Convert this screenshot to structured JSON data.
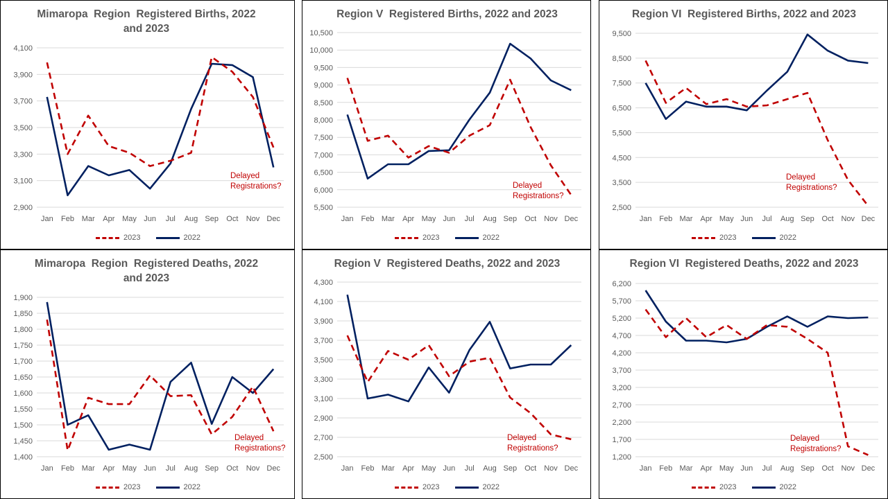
{
  "colors": {
    "series_2023": "#c00000",
    "series_2022": "#002060",
    "annotation": "#c00000",
    "grid": "#d9d9d9",
    "axis_text": "#595959",
    "title_text": "#595959"
  },
  "chart_data": [
    {
      "type": "line",
      "title": "Mimaropa  Region  Registered Births, 2022\nand 2023",
      "categories": [
        "Jan",
        "Feb",
        "Mar",
        "Apr",
        "May",
        "Jun",
        "Jul",
        "Aug",
        "Sep",
        "Oct",
        "Nov",
        "Dec"
      ],
      "y_ticks": [
        "2,900",
        "3,100",
        "3,300",
        "3,500",
        "3,700",
        "3,900",
        "4,100"
      ],
      "ylim": [
        2900,
        4100
      ],
      "series": [
        {
          "name": "2023",
          "style": "dashed",
          "values": [
            3990,
            3300,
            3590,
            3360,
            3310,
            3210,
            3250,
            3310,
            4030,
            3920,
            3730,
            3350
          ]
        },
        {
          "name": "2022",
          "style": "solid",
          "values": [
            3730,
            2990,
            3210,
            3140,
            3180,
            3040,
            3230,
            3640,
            3980,
            3970,
            3880,
            3200
          ]
        }
      ],
      "annotation": {
        "lines": [
          "Delayed",
          "Registrations?"
        ]
      },
      "legend": "bottom"
    },
    {
      "type": "line",
      "title": "Region V  Registered Births, 2022 and 2023",
      "categories": [
        "Jan",
        "Feb",
        "Mar",
        "Apr",
        "May",
        "Jun",
        "Jul",
        "Aug",
        "Sep",
        "Oct",
        "Nov",
        "Dec"
      ],
      "y_ticks": [
        "5,500",
        "6,000",
        "6,500",
        "7,000",
        "7,500",
        "8,000",
        "8,500",
        "9,000",
        "9,500",
        "10,000",
        "10,500"
      ],
      "ylim": [
        5500,
        10500
      ],
      "series": [
        {
          "name": "2023",
          "style": "dashed",
          "values": [
            9200,
            7400,
            7550,
            6920,
            7250,
            7060,
            7550,
            7850,
            9150,
            7800,
            6700,
            5850
          ]
        },
        {
          "name": "2022",
          "style": "solid",
          "values": [
            8150,
            6320,
            6730,
            6730,
            7110,
            7130,
            8010,
            8780,
            10180,
            9760,
            9130,
            8850
          ]
        }
      ],
      "annotation": {
        "lines": [
          "Delayed",
          "Registrations?"
        ]
      },
      "legend": "bottom"
    },
    {
      "type": "line",
      "title": "Region VI  Registered Births, 2022 and 2023",
      "categories": [
        "Jan",
        "Feb",
        "Mar",
        "Apr",
        "May",
        "Jun",
        "Jul",
        "Aug",
        "Sep",
        "Oct",
        "Nov",
        "Dec"
      ],
      "y_ticks": [
        "2,500",
        "3,500",
        "4,500",
        "5,500",
        "6,500",
        "7,500",
        "8,500",
        "9,500"
      ],
      "ylim": [
        2500,
        9500
      ],
      "series": [
        {
          "name": "2023",
          "style": "dashed",
          "values": [
            8400,
            6700,
            7300,
            6650,
            6850,
            6550,
            6600,
            6850,
            7100,
            5200,
            3600,
            2550
          ]
        },
        {
          "name": "2022",
          "style": "solid",
          "values": [
            7500,
            6050,
            6750,
            6550,
            6550,
            6400,
            7200,
            7950,
            9450,
            8800,
            8400,
            8300
          ]
        }
      ],
      "annotation": {
        "lines": [
          "Delayed",
          "Registrations?"
        ]
      },
      "legend": "bottom"
    },
    {
      "type": "line",
      "title": "Mimaropa  Region  Registered Deaths, 2022\nand 2023",
      "categories": [
        "Jan",
        "Feb",
        "Mar",
        "Apr",
        "May",
        "Jun",
        "Jul",
        "Aug",
        "Sep",
        "Oct",
        "Nov",
        "Dec"
      ],
      "y_ticks": [
        "1,400",
        "1,450",
        "1,500",
        "1,550",
        "1,600",
        "1,650",
        "1,700",
        "1,750",
        "1,800",
        "1,850",
        "1,900"
      ],
      "ylim": [
        1400,
        1900
      ],
      "series": [
        {
          "name": "2023",
          "style": "dashed",
          "values": [
            1830,
            1420,
            1585,
            1565,
            1565,
            1655,
            1590,
            1593,
            1470,
            1525,
            1620,
            1480
          ]
        },
        {
          "name": "2022",
          "style": "solid",
          "values": [
            1885,
            1500,
            1530,
            1422,
            1438,
            1422,
            1635,
            1695,
            1503,
            1650,
            1600,
            1675
          ]
        }
      ],
      "annotation": {
        "lines": [
          "Delayed",
          "Registrations?"
        ]
      },
      "legend": "bottom"
    },
    {
      "type": "line",
      "title": "Region V  Registered Deaths, 2022 and 2023",
      "categories": [
        "Jan",
        "Feb",
        "Mar",
        "Apr",
        "May",
        "Jun",
        "Jul",
        "Aug",
        "Sep",
        "Oct",
        "Nov",
        "Dec"
      ],
      "y_ticks": [
        "2,500",
        "2,700",
        "2,900",
        "3,100",
        "3,300",
        "3,500",
        "3,700",
        "3,900",
        "4,100",
        "4,300"
      ],
      "ylim": [
        2500,
        4300
      ],
      "series": [
        {
          "name": "2023",
          "style": "dashed",
          "values": [
            3750,
            3270,
            3590,
            3500,
            3650,
            3330,
            3480,
            3520,
            3110,
            2950,
            2730,
            2680
          ]
        },
        {
          "name": "2022",
          "style": "solid",
          "values": [
            4170,
            3100,
            3140,
            3070,
            3420,
            3160,
            3600,
            3890,
            3410,
            3450,
            3450,
            3650
          ]
        }
      ],
      "annotation": {
        "lines": [
          "Delayed",
          "Registrations?"
        ]
      },
      "legend": "bottom"
    },
    {
      "type": "line",
      "title": "Region VI  Registered Deaths, 2022 and 2023",
      "categories": [
        "Jan",
        "Feb",
        "Mar",
        "Apr",
        "May",
        "Jun",
        "Jul",
        "Aug",
        "Sep",
        "Oct",
        "Nov",
        "Dec"
      ],
      "y_ticks": [
        "1,200",
        "1,700",
        "2,200",
        "2,700",
        "3,200",
        "3,700",
        "4,200",
        "4,700",
        "5,200",
        "5,700",
        "6,200"
      ],
      "ylim": [
        1200,
        6200
      ],
      "series": [
        {
          "name": "2023",
          "style": "dashed",
          "values": [
            5450,
            4650,
            5200,
            4650,
            5000,
            4600,
            5000,
            4950,
            4600,
            4200,
            1500,
            1250
          ]
        },
        {
          "name": "2022",
          "style": "solid",
          "values": [
            6000,
            5100,
            4550,
            4550,
            4500,
            4600,
            4950,
            5250,
            4950,
            5250,
            5200,
            5220
          ]
        }
      ],
      "annotation": {
        "lines": [
          "Delayed",
          "Registrations?"
        ]
      },
      "legend": "bottom"
    }
  ]
}
